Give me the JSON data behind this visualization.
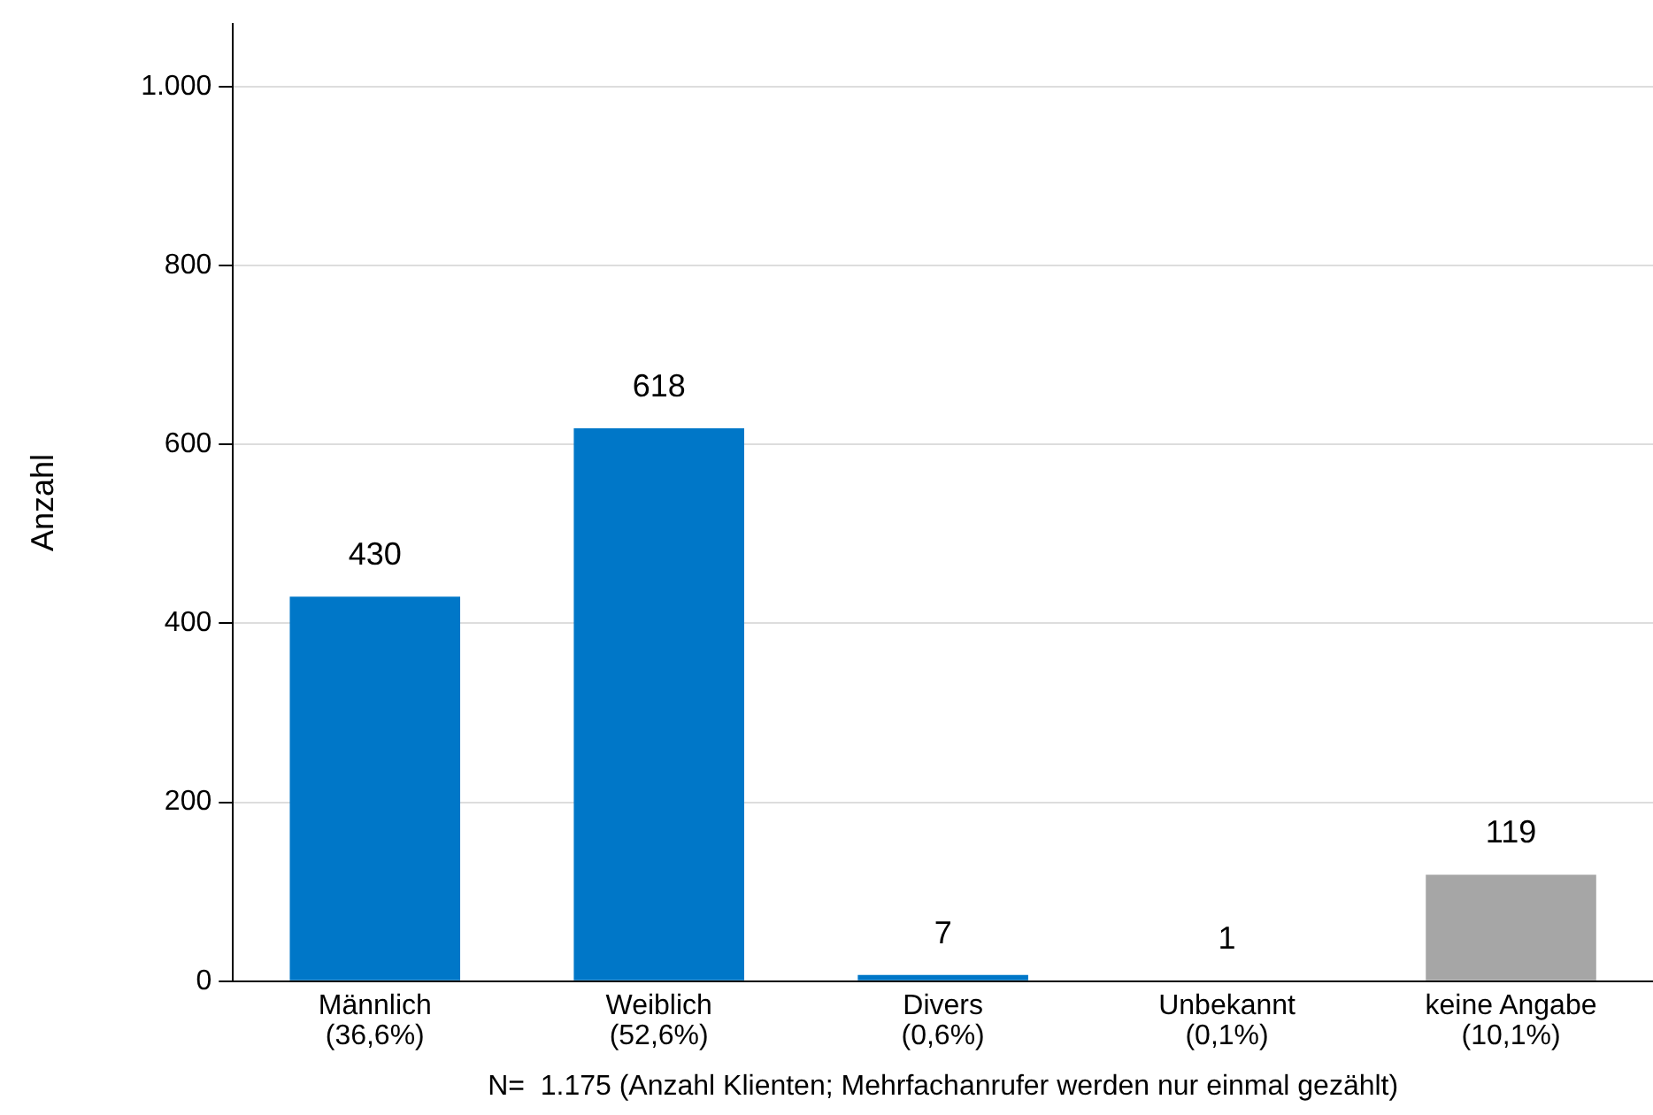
{
  "chart_data": {
    "type": "bar",
    "ylabel": "Anzahl",
    "categories": [
      "Männlich\n(36,6%)",
      "Weiblich\n(52,6%)",
      "Divers\n(0,6%)",
      "Unbekannt\n(0,1%)",
      "keine Angabe\n(10,1%)"
    ],
    "values": [
      430,
      618,
      7,
      1,
      119
    ],
    "colors": [
      "#0077c8",
      "#0077c8",
      "#0077c8",
      "#0077c8",
      "#a6a6a6"
    ],
    "ylim": [
      0,
      1070
    ],
    "yticks": [
      0,
      200,
      400,
      600,
      800,
      {
        "value": 1000,
        "label": "1.000"
      }
    ],
    "grid": "y",
    "legend": false,
    "data_labels": true,
    "annotations": [
      "N=  1.175 (Anzahl Klienten; Mehrfachanrufer werden nur einmal gezählt)"
    ]
  }
}
